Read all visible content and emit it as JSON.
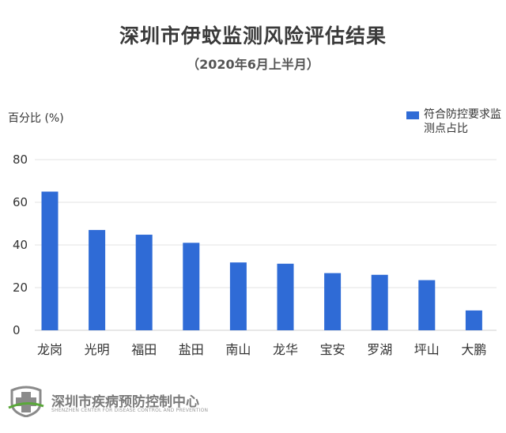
{
  "chart_data": {
    "type": "bar",
    "title": "深圳市伊蚊监测风险评估结果",
    "subtitle": "（2020年6月上半月）",
    "ylabel": "百分比 (%)",
    "xlabel": "",
    "categories": [
      "龙岗",
      "光明",
      "福田",
      "盐田",
      "南山",
      "龙华",
      "宝安",
      "罗湖",
      "坪山",
      "大鹏"
    ],
    "series": [
      {
        "name": "符合防控要求监测点占比",
        "values": [
          65,
          47,
          44.8,
          41,
          31.8,
          31.2,
          26.8,
          26,
          23.5,
          9.3
        ],
        "color": "#2f6bd6"
      }
    ],
    "ylim": [
      0,
      80
    ],
    "yticks": [
      0,
      20,
      40,
      60,
      80
    ],
    "grid": true,
    "legend_position": "top-right"
  },
  "footer": {
    "org_name": "深圳市疾病预防控制中心",
    "org_name_en": "SHENZHEN CENTER FOR DISEASE CONTROL AND PREVENTION",
    "logo_icon": "cdc-logo-icon",
    "logo_color": "#8a8a8a",
    "logo_accent": "#5aa83a"
  }
}
